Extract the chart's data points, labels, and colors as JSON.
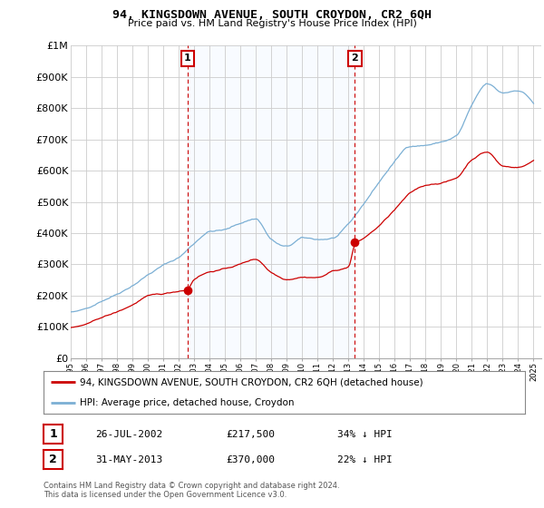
{
  "title": "94, KINGSDOWN AVENUE, SOUTH CROYDON, CR2 6QH",
  "subtitle": "Price paid vs. HM Land Registry's House Price Index (HPI)",
  "legend_line1": "94, KINGSDOWN AVENUE, SOUTH CROYDON, CR2 6QH (detached house)",
  "legend_line2": "HPI: Average price, detached house, Croydon",
  "footnote": "Contains HM Land Registry data © Crown copyright and database right 2024.\nThis data is licensed under the Open Government Licence v3.0.",
  "sale1_label": "1",
  "sale1_date": "26-JUL-2002",
  "sale1_price": "£217,500",
  "sale1_hpi": "34% ↓ HPI",
  "sale2_label": "2",
  "sale2_date": "31-MAY-2013",
  "sale2_price": "£370,000",
  "sale2_hpi": "22% ↓ HPI",
  "sale1_year": 2002.57,
  "sale2_year": 2013.42,
  "sale1_price_val": 217500,
  "sale2_price_val": 370000,
  "red_line_color": "#cc0000",
  "blue_line_color": "#7bafd4",
  "shade_color": "#ddeeff",
  "vline_color": "#cc0000",
  "marker_color": "#cc0000",
  "background_color": "#ffffff",
  "grid_color": "#cccccc",
  "ylim": [
    0,
    1000000
  ],
  "xlim_start": 1995.0,
  "xlim_end": 2025.5
}
